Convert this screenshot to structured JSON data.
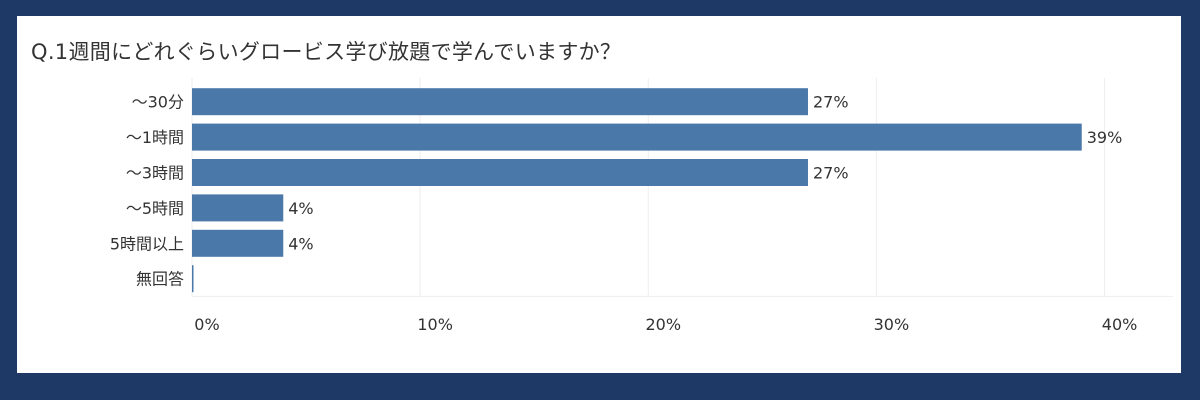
{
  "title": "Q.1週間にどれぐらいグロービス学び放題で学んでいますか？",
  "colors": {
    "bar": "#4a78a8",
    "background": "#1f3966",
    "panel": "#ffffff",
    "grid": "#eeeeee"
  },
  "chart_data": {
    "type": "bar",
    "orientation": "horizontal",
    "title": "Q.1週間にどれぐらいグロービス学び放題で学んでいますか？",
    "categories": [
      "～30分",
      "～1時間",
      "～3時間",
      "～5時間",
      "5時間以上",
      "無回答"
    ],
    "values": [
      27,
      39,
      27,
      4,
      4,
      0
    ],
    "value_labels": [
      "27%",
      "39%",
      "27%",
      "4%",
      "4%",
      ""
    ],
    "xlim": [
      0,
      43
    ],
    "x_ticks": [
      0,
      10,
      20,
      30,
      40
    ],
    "x_tick_labels": [
      "0%",
      "10%",
      "20%",
      "30%",
      "40%"
    ],
    "grid": true,
    "xlabel": "",
    "ylabel": ""
  }
}
